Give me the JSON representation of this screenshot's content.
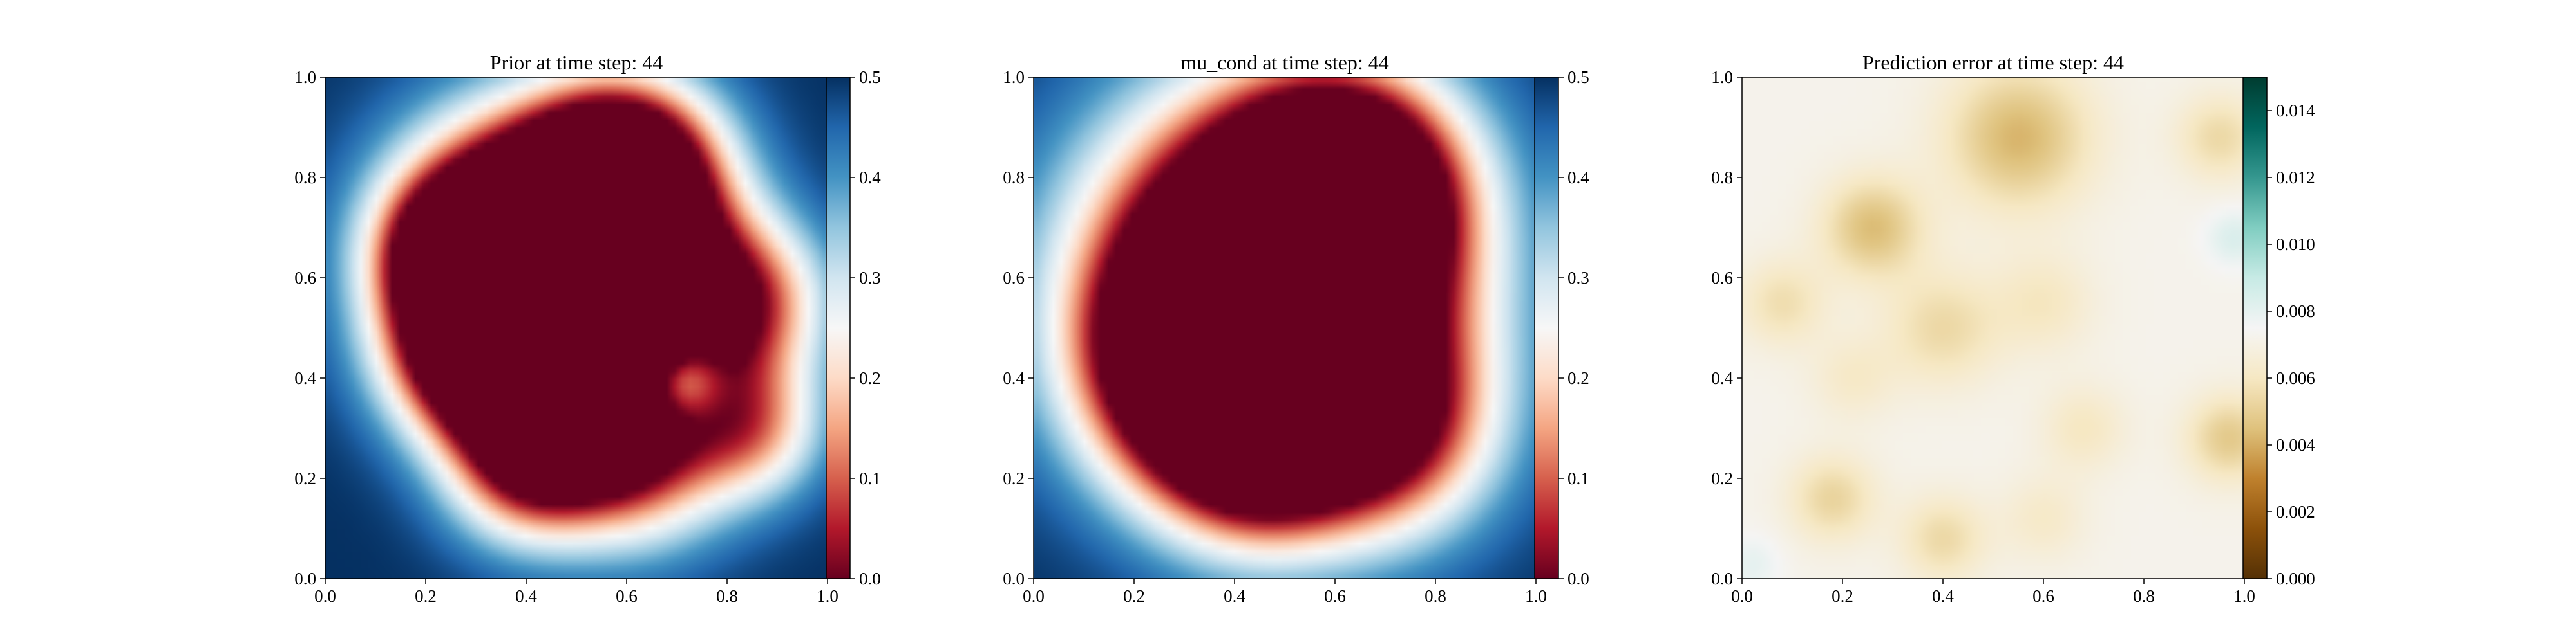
{
  "chart_data": [
    {
      "type": "heatmap",
      "title": "Prior at time step: 44",
      "xlabel": "",
      "ylabel": "",
      "xlim": [
        0.0,
        1.0
      ],
      "ylim": [
        0.0,
        1.0
      ],
      "xticks": [
        "0.0",
        "0.2",
        "0.4",
        "0.6",
        "0.8",
        "1.0"
      ],
      "yticks": [
        "0.0",
        "0.2",
        "0.4",
        "0.6",
        "0.8",
        "1.0"
      ],
      "colormap": "RdBu",
      "colorbar": {
        "range": [
          0.0,
          0.5
        ],
        "ticks": [
          "0.0",
          "0.1",
          "0.2",
          "0.3",
          "0.4",
          "0.5"
        ]
      },
      "field": {
        "base": 0.5,
        "blobs": [
          {
            "x": 0.4,
            "y": 0.66,
            "r": 0.17,
            "a": -0.95
          },
          {
            "x": 0.6,
            "y": 0.8,
            "r": 0.13,
            "a": -0.75
          },
          {
            "x": 0.55,
            "y": 0.55,
            "r": 0.14,
            "a": -0.65
          },
          {
            "x": 0.3,
            "y": 0.45,
            "r": 0.12,
            "a": -0.55
          },
          {
            "x": 0.48,
            "y": 0.38,
            "r": 0.13,
            "a": -0.5
          },
          {
            "x": 0.82,
            "y": 0.55,
            "r": 0.12,
            "a": -0.45
          },
          {
            "x": 0.62,
            "y": 0.25,
            "r": 0.13,
            "a": -0.4
          },
          {
            "x": 0.4,
            "y": 0.22,
            "r": 0.11,
            "a": -0.35
          },
          {
            "x": 0.25,
            "y": 0.65,
            "r": 0.1,
            "a": -0.35
          },
          {
            "x": 0.85,
            "y": 0.3,
            "r": 0.1,
            "a": -0.3
          },
          {
            "x": 0.7,
            "y": 0.4,
            "r": 0.06,
            "a": 0.3
          }
        ]
      }
    },
    {
      "type": "heatmap",
      "title": "mu_cond at time step: 44",
      "xlabel": "",
      "ylabel": "",
      "xlim": [
        0.0,
        1.0
      ],
      "ylim": [
        0.0,
        1.0
      ],
      "xticks": [
        "0.0",
        "0.2",
        "0.4",
        "0.6",
        "0.8",
        "1.0"
      ],
      "yticks": [
        "0.0",
        "0.2",
        "0.4",
        "0.6",
        "0.8",
        "1.0"
      ],
      "colormap": "RdBu",
      "colorbar": {
        "range": [
          0.0,
          0.5
        ],
        "ticks": [
          "0.0",
          "0.1",
          "0.2",
          "0.3",
          "0.4",
          "0.5"
        ]
      },
      "field": {
        "base": 0.5,
        "blobs": [
          {
            "x": 0.48,
            "y": 0.6,
            "r": 0.24,
            "a": -1.0
          },
          {
            "x": 0.35,
            "y": 0.42,
            "r": 0.16,
            "a": -0.6
          },
          {
            "x": 0.62,
            "y": 0.78,
            "r": 0.15,
            "a": -0.6
          },
          {
            "x": 0.7,
            "y": 0.3,
            "r": 0.15,
            "a": -0.4
          },
          {
            "x": 0.45,
            "y": 0.25,
            "r": 0.14,
            "a": -0.35
          }
        ]
      }
    },
    {
      "type": "heatmap",
      "title": "Prediction error at time step: 44",
      "xlabel": "",
      "ylabel": "",
      "xlim": [
        0.0,
        1.0
      ],
      "ylim": [
        0.0,
        1.0
      ],
      "xticks": [
        "0.0",
        "0.2",
        "0.4",
        "0.6",
        "0.8",
        "1.0"
      ],
      "yticks": [
        "0.0",
        "0.2",
        "0.4",
        "0.6",
        "0.8",
        "1.0"
      ],
      "colormap": "BrBG",
      "colorbar": {
        "range": [
          0.0,
          0.015
        ],
        "ticks": [
          "0.000",
          "0.002",
          "0.004",
          "0.006",
          "0.008",
          "0.010",
          "0.012",
          "0.014"
        ]
      },
      "field": {
        "base": 0.0072,
        "blobs": [
          {
            "x": 0.26,
            "y": 0.7,
            "r": 0.07,
            "a": -0.0028
          },
          {
            "x": 0.55,
            "y": 0.88,
            "r": 0.1,
            "a": -0.003
          },
          {
            "x": 0.95,
            "y": 0.88,
            "r": 0.06,
            "a": -0.0018
          },
          {
            "x": 0.08,
            "y": 0.55,
            "r": 0.06,
            "a": -0.0016
          },
          {
            "x": 0.4,
            "y": 0.5,
            "r": 0.08,
            "a": -0.0018
          },
          {
            "x": 0.6,
            "y": 0.55,
            "r": 0.07,
            "a": -0.0012
          },
          {
            "x": 0.22,
            "y": 0.4,
            "r": 0.06,
            "a": -0.001
          },
          {
            "x": 0.18,
            "y": 0.16,
            "r": 0.06,
            "a": -0.002
          },
          {
            "x": 0.4,
            "y": 0.08,
            "r": 0.06,
            "a": -0.0018
          },
          {
            "x": 0.68,
            "y": 0.3,
            "r": 0.06,
            "a": -0.0012
          },
          {
            "x": 0.97,
            "y": 0.28,
            "r": 0.06,
            "a": -0.0024
          },
          {
            "x": 0.6,
            "y": 0.12,
            "r": 0.06,
            "a": -0.001
          },
          {
            "x": 0.98,
            "y": 0.68,
            "r": 0.04,
            "a": 0.0012
          },
          {
            "x": 0.02,
            "y": 0.03,
            "r": 0.04,
            "a": 0.0008
          }
        ]
      }
    }
  ]
}
